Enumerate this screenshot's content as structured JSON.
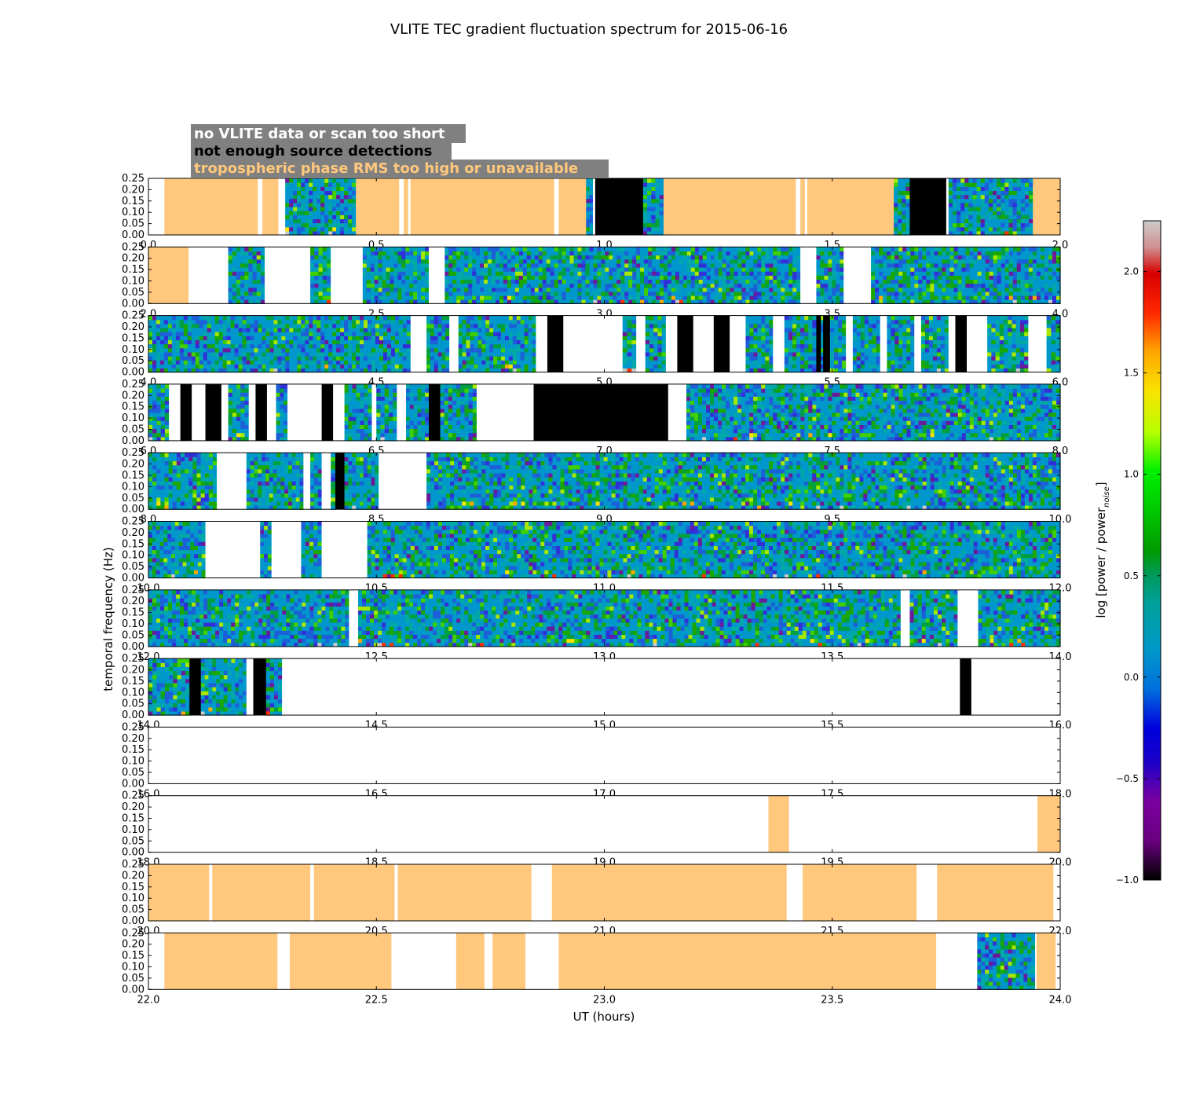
{
  "chart_data": {
    "type": "heatmap",
    "title": "VLITE TEC gradient fluctuation spectrum for 2015-06-16",
    "xlabel": "UT (hours)",
    "ylabel": "temporal frequency (Hz)",
    "ylim": [
      0,
      0.25
    ],
    "yticks": [
      "0.00",
      "0.05",
      "0.10",
      "0.15",
      "0.20",
      "0.25"
    ],
    "colorbar": {
      "label": "log [power / power",
      "label_sub": "noise",
      "label_end": "]",
      "range": [
        -1.0,
        2.25
      ],
      "ticks": [
        "−1.0",
        "−0.5",
        "0.0",
        "0.5",
        "1.0",
        "1.5",
        "2.0"
      ],
      "tick_values": [
        -1.0,
        -0.5,
        0.0,
        0.5,
        1.0,
        1.5,
        2.0
      ]
    },
    "legend": [
      {
        "label": "no VLITE data or scan too short",
        "color": "#ffffff"
      },
      {
        "label": "not enough source detections",
        "color": "#000000"
      },
      {
        "label": "tropospheric phase RMS too high or unavailable",
        "color": "#ffc87c"
      }
    ],
    "colors": {
      "missing": "#ffffff",
      "nodetect": "#000000",
      "tropo": "#ffc87c",
      "legend_box": "#808080"
    },
    "panels": [
      {
        "start": 0.0,
        "ticks": [
          "0.0",
          "0.5",
          "1.0",
          "1.5",
          "2.0"
        ],
        "segments": [
          [
            "w",
            0,
            0.035
          ],
          [
            "o",
            0.035,
            0.24
          ],
          [
            "w",
            0.24,
            0.25
          ],
          [
            "o",
            0.25,
            0.285
          ],
          [
            "w",
            0.285,
            0.3
          ],
          [
            "d",
            0.3,
            0.455
          ],
          [
            "o",
            0.455,
            0.55
          ],
          [
            "w",
            0.55,
            0.56
          ],
          [
            "o",
            0.56,
            0.57
          ],
          [
            "w",
            0.57,
            0.575
          ],
          [
            "o",
            0.575,
            0.89
          ],
          [
            "w",
            0.89,
            0.9
          ],
          [
            "o",
            0.9,
            0.96
          ],
          [
            "d",
            0.96,
            0.975
          ],
          [
            "w",
            0.975,
            0.98
          ],
          [
            "b",
            0.98,
            1.085
          ],
          [
            "d",
            1.085,
            1.13
          ],
          [
            "o",
            1.13,
            1.42
          ],
          [
            "w",
            1.42,
            1.43
          ],
          [
            "o",
            1.43,
            1.44
          ],
          [
            "w",
            1.44,
            1.445
          ],
          [
            "o",
            1.445,
            1.635
          ],
          [
            "d",
            1.635,
            1.67
          ],
          [
            "b",
            1.67,
            1.75
          ],
          [
            "w",
            1.75,
            1.755
          ],
          [
            "d",
            1.755,
            1.94
          ],
          [
            "o",
            1.94,
            2.0
          ]
        ]
      },
      {
        "start": 2.0,
        "ticks": [
          "2.0",
          "2.5",
          "3.0",
          "3.5",
          "4.0"
        ],
        "segments": [
          [
            "o",
            2.0,
            2.088
          ],
          [
            "w",
            2.088,
            2.175
          ],
          [
            "d",
            2.175,
            2.255
          ],
          [
            "w",
            2.255,
            2.355
          ],
          [
            "d",
            2.355,
            2.4
          ],
          [
            "w",
            2.4,
            2.47
          ],
          [
            "d",
            2.47,
            2.615
          ],
          [
            "w",
            2.615,
            2.65
          ],
          [
            "d",
            2.65,
            3.43
          ],
          [
            "w",
            3.43,
            3.465
          ],
          [
            "d",
            3.465,
            3.525
          ],
          [
            "w",
            3.525,
            3.585
          ],
          [
            "d",
            3.585,
            4.0
          ]
        ]
      },
      {
        "start": 4.0,
        "ticks": [
          "4.0",
          "4.5",
          "5.0",
          "5.5",
          "6.0"
        ],
        "segments": [
          [
            "d",
            4.0,
            4.575
          ],
          [
            "w",
            4.575,
            4.61
          ],
          [
            "d",
            4.61,
            4.66
          ],
          [
            "w",
            4.66,
            4.68
          ],
          [
            "d",
            4.68,
            4.85
          ],
          [
            "w",
            4.85,
            4.875
          ],
          [
            "b",
            4.875,
            4.91
          ],
          [
            "w",
            4.91,
            5.04
          ],
          [
            "d",
            5.04,
            5.07
          ],
          [
            "w",
            5.07,
            5.09
          ],
          [
            "d",
            5.09,
            5.135
          ],
          [
            "w",
            5.135,
            5.16
          ],
          [
            "b",
            5.16,
            5.195
          ],
          [
            "w",
            5.195,
            5.24
          ],
          [
            "b",
            5.24,
            5.275
          ],
          [
            "w",
            5.275,
            5.31
          ],
          [
            "d",
            5.31,
            5.37
          ],
          [
            "w",
            5.37,
            5.395
          ],
          [
            "d",
            5.395,
            5.465
          ],
          [
            "b",
            5.465,
            5.475
          ],
          [
            "d",
            5.475,
            5.48
          ],
          [
            "b",
            5.48,
            5.495
          ],
          [
            "d",
            5.495,
            5.53
          ],
          [
            "w",
            5.53,
            5.545
          ],
          [
            "d",
            5.545,
            5.605
          ],
          [
            "w",
            5.605,
            5.62
          ],
          [
            "d",
            5.62,
            5.68
          ],
          [
            "w",
            5.68,
            5.695
          ],
          [
            "d",
            5.695,
            5.755
          ],
          [
            "w",
            5.755,
            5.77
          ],
          [
            "b",
            5.77,
            5.795
          ],
          [
            "w",
            5.795,
            5.84
          ],
          [
            "d",
            5.84,
            5.93
          ],
          [
            "w",
            5.93,
            5.97
          ],
          [
            "d",
            5.97,
            6.0
          ]
        ]
      },
      {
        "start": 6.0,
        "ticks": [
          "6.0",
          "6.5",
          "7.0",
          "7.5",
          "8.0"
        ],
        "segments": [
          [
            "d",
            6.0,
            6.045
          ],
          [
            "w",
            6.045,
            6.07
          ],
          [
            "b",
            6.07,
            6.095
          ],
          [
            "w",
            6.095,
            6.125
          ],
          [
            "b",
            6.125,
            6.16
          ],
          [
            "w",
            6.16,
            6.175
          ],
          [
            "d",
            6.175,
            6.22
          ],
          [
            "w",
            6.22,
            6.235
          ],
          [
            "b",
            6.235,
            6.26
          ],
          [
            "w",
            6.26,
            6.28
          ],
          [
            "d",
            6.28,
            6.305
          ],
          [
            "w",
            6.305,
            6.38
          ],
          [
            "b",
            6.38,
            6.405
          ],
          [
            "w",
            6.405,
            6.43
          ],
          [
            "d",
            6.43,
            6.49
          ],
          [
            "w",
            6.49,
            6.5
          ],
          [
            "d",
            6.5,
            6.545
          ],
          [
            "w",
            6.545,
            6.565
          ],
          [
            "d",
            6.565,
            6.615
          ],
          [
            "b",
            6.615,
            6.64
          ],
          [
            "d",
            6.64,
            6.72
          ],
          [
            "w",
            6.72,
            6.845
          ],
          [
            "b",
            6.845,
            7.14
          ],
          [
            "w",
            7.14,
            7.18
          ],
          [
            "d",
            7.18,
            8.0
          ]
        ]
      },
      {
        "start": 8.0,
        "ticks": [
          "8.0",
          "8.5",
          "9.0",
          "9.5",
          "10.0"
        ],
        "segments": [
          [
            "d",
            8.0,
            8.15
          ],
          [
            "w",
            8.15,
            8.215
          ],
          [
            "d",
            8.215,
            8.34
          ],
          [
            "w",
            8.34,
            8.355
          ],
          [
            "d",
            8.355,
            8.38
          ],
          [
            "w",
            8.38,
            8.4
          ],
          [
            "d",
            8.4,
            8.41
          ],
          [
            "b",
            8.41,
            8.43
          ],
          [
            "d",
            8.43,
            8.505
          ],
          [
            "w",
            8.505,
            8.61
          ],
          [
            "d",
            8.61,
            10.0
          ]
        ]
      },
      {
        "start": 10.0,
        "ticks": [
          "10.0",
          "10.5",
          "11.0",
          "11.5",
          "12.0"
        ],
        "segments": [
          [
            "d",
            10.0,
            10.125
          ],
          [
            "w",
            10.125,
            10.245
          ],
          [
            "d",
            10.245,
            10.27
          ],
          [
            "w",
            10.27,
            10.335
          ],
          [
            "d",
            10.335,
            10.38
          ],
          [
            "w",
            10.38,
            10.48
          ],
          [
            "d",
            10.48,
            12.0
          ]
        ]
      },
      {
        "start": 12.0,
        "ticks": [
          "12.0",
          "12.5",
          "13.0",
          "13.5",
          "14.0"
        ],
        "segments": [
          [
            "d",
            12.0,
            12.44
          ],
          [
            "w",
            12.44,
            12.46
          ],
          [
            "d",
            12.46,
            13.65
          ],
          [
            "w",
            13.65,
            13.67
          ],
          [
            "d",
            13.67,
            13.775
          ],
          [
            "w",
            13.775,
            13.82
          ],
          [
            "d",
            13.82,
            14.0
          ]
        ]
      },
      {
        "start": 14.0,
        "ticks": [
          "14.0",
          "14.5",
          "15.0",
          "15.5",
          "16.0"
        ],
        "segments": [
          [
            "d",
            14.0,
            14.09
          ],
          [
            "b",
            14.09,
            14.115
          ],
          [
            "d",
            14.115,
            14.215
          ],
          [
            "w",
            14.215,
            14.23
          ],
          [
            "b",
            14.23,
            14.258
          ],
          [
            "d",
            14.258,
            14.293
          ],
          [
            "w",
            14.293,
            15.78
          ],
          [
            "b",
            15.78,
            15.805
          ],
          [
            "w",
            15.805,
            16.0
          ]
        ]
      },
      {
        "start": 16.0,
        "ticks": [
          "16.0",
          "16.5",
          "17.0",
          "17.5",
          "18.0"
        ],
        "segments": [
          [
            "w",
            16.0,
            18.0
          ]
        ]
      },
      {
        "start": 18.0,
        "ticks": [
          "18.0",
          "18.5",
          "19.0",
          "19.5",
          "20.0"
        ],
        "segments": [
          [
            "w",
            18.0,
            19.36
          ],
          [
            "o",
            19.36,
            19.405
          ],
          [
            "w",
            19.405,
            19.95
          ],
          [
            "o",
            19.95,
            20.0
          ]
        ]
      },
      {
        "start": 20.0,
        "ticks": [
          "20.0",
          "20.5",
          "21.0",
          "21.5",
          "22.0"
        ],
        "segments": [
          [
            "o",
            20.0,
            20.133
          ],
          [
            "w",
            20.133,
            20.14
          ],
          [
            "o",
            20.14,
            20.355
          ],
          [
            "w",
            20.355,
            20.363
          ],
          [
            "o",
            20.363,
            20.54
          ],
          [
            "w",
            20.54,
            20.547
          ],
          [
            "o",
            20.547,
            20.84
          ],
          [
            "w",
            20.84,
            20.885
          ],
          [
            "o",
            20.885,
            21.4
          ],
          [
            "w",
            21.4,
            21.435
          ],
          [
            "o",
            21.435,
            21.685
          ],
          [
            "w",
            21.685,
            21.73
          ],
          [
            "o",
            21.73,
            21.985
          ],
          [
            "w",
            21.985,
            22.0
          ]
        ]
      },
      {
        "start": 22.0,
        "ticks": [
          "22.0",
          "22.5",
          "23.0",
          "23.5",
          "24.0"
        ],
        "segments": [
          [
            "w",
            22.0,
            22.035
          ],
          [
            "o",
            22.035,
            22.283
          ],
          [
            "w",
            22.283,
            22.31
          ],
          [
            "o",
            22.31,
            22.533
          ],
          [
            "w",
            22.533,
            22.675
          ],
          [
            "o",
            22.675,
            22.737
          ],
          [
            "w",
            22.737,
            22.755
          ],
          [
            "o",
            22.755,
            22.827
          ],
          [
            "w",
            22.827,
            22.9
          ],
          [
            "o",
            22.9,
            23.728
          ],
          [
            "w",
            23.728,
            23.818
          ],
          [
            "d",
            23.818,
            23.945
          ],
          [
            "w",
            23.945,
            23.948
          ],
          [
            "o",
            23.948,
            23.99
          ],
          [
            "w",
            23.99,
            24.0
          ]
        ]
      }
    ]
  }
}
